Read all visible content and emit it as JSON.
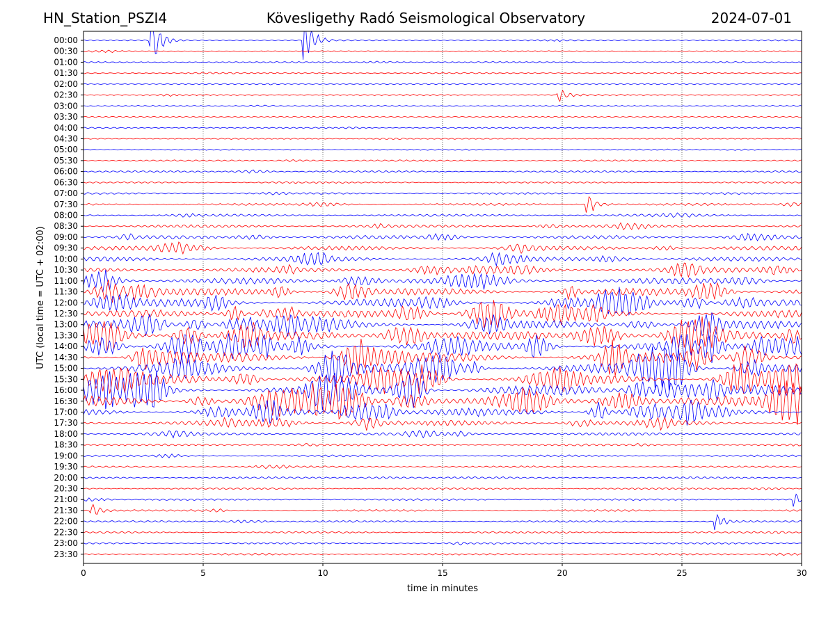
{
  "header": {
    "station": "HN_Station_PSZI4",
    "observatory": "Kövesligethy Radó Seismological Observatory",
    "date": "2024-07-01"
  },
  "chart_data": {
    "type": "line",
    "title": "Kövesligethy Radó Seismological Observatory",
    "xlabel": "time in minutes",
    "ylabel": "UTC (local time = UTC + 02:00)",
    "xlim": [
      0,
      30
    ],
    "x_ticks": [
      "0",
      "5",
      "10",
      "15",
      "20",
      "25",
      "30"
    ],
    "x_tick_values": [
      0,
      5,
      10,
      15,
      20,
      25,
      30
    ],
    "rows": [
      "00:00",
      "00:30",
      "01:00",
      "01:30",
      "02:00",
      "02:30",
      "03:00",
      "03:30",
      "04:00",
      "04:30",
      "05:00",
      "05:30",
      "06:00",
      "06:30",
      "07:00",
      "07:30",
      "08:00",
      "08:30",
      "09:00",
      "09:30",
      "10:00",
      "10:30",
      "11:00",
      "11:30",
      "12:00",
      "12:30",
      "13:00",
      "13:30",
      "14:00",
      "14:30",
      "15:00",
      "15:30",
      "16:00",
      "16:30",
      "17:00",
      "17:30",
      "18:00",
      "18:30",
      "19:00",
      "19:30",
      "20:00",
      "20:30",
      "21:00",
      "21:30",
      "22:00",
      "22:30",
      "23:00",
      "23:30"
    ],
    "row_colors": [
      "#0000ff",
      "#ff0000"
    ],
    "grid": "vertical dotted at x ticks",
    "activity_level": [
      0.05,
      0.05,
      0.05,
      0.04,
      0.04,
      0.05,
      0.04,
      0.03,
      0.04,
      0.04,
      0.05,
      0.07,
      0.08,
      0.07,
      0.1,
      0.13,
      0.15,
      0.2,
      0.25,
      0.3,
      0.35,
      0.4,
      0.5,
      0.6,
      0.65,
      0.6,
      0.65,
      0.75,
      0.8,
      0.8,
      0.8,
      0.85,
      0.85,
      0.8,
      0.65,
      0.4,
      0.2,
      0.12,
      0.1,
      0.09,
      0.1,
      0.09,
      0.1,
      0.1,
      0.09,
      0.09,
      0.09,
      0.1
    ],
    "events": [
      {
        "row": "00:00",
        "minute": 2.8,
        "amplitude": 3.2
      },
      {
        "row": "00:00",
        "minute": 9.2,
        "amplitude": 3.0
      },
      {
        "row": "02:30",
        "minute": 19.8,
        "amplitude": 0.9
      },
      {
        "row": "07:30",
        "minute": 21.0,
        "amplitude": 1.5
      },
      {
        "row": "21:30",
        "minute": 0.3,
        "amplitude": 0.8
      },
      {
        "row": "22:00",
        "minute": 26.4,
        "amplitude": 1.0
      },
      {
        "row": "21:00",
        "minute": 29.7,
        "amplitude": 0.7
      }
    ]
  }
}
